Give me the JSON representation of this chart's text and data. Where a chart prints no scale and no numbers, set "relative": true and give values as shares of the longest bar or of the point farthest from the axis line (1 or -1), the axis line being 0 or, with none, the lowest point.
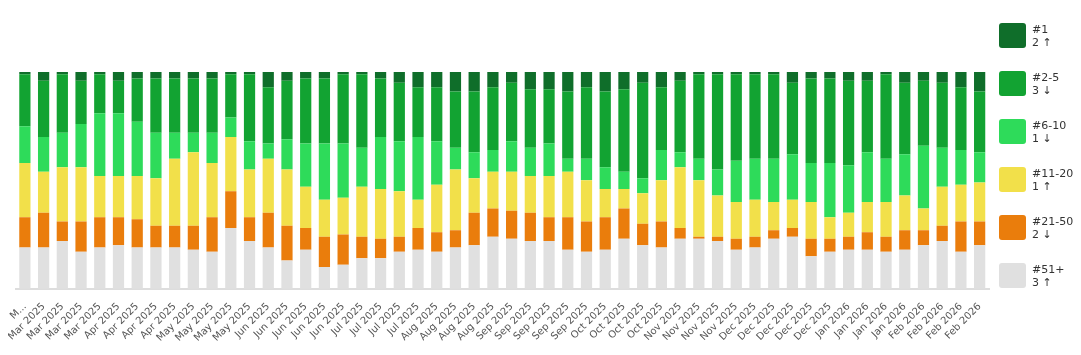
{
  "chart_data": {
    "type": "bar",
    "stacked": true,
    "relative": true,
    "legend": "right",
    "categories": [
      "M...",
      "Mar 2025",
      "Mar 2025",
      "Mar 2025",
      "Mar 2025",
      "Apr 2025",
      "Apr 2025",
      "Apr 2025",
      "Apr 2025",
      "May 2025",
      "May 2025",
      "May 2025",
      "May 2025",
      "Jun 2025",
      "Jun 2025",
      "Jun 2025",
      "Jun 2025",
      "Jun 2025",
      "Jul 2025",
      "Jul 2025",
      "Jul 2025",
      "Jul 2025",
      "Aug 2025",
      "Aug 2025",
      "Aug 2025",
      "Aug 2025",
      "Sep 2025",
      "Sep 2025",
      "Sep 2025",
      "Sep 2025",
      "Sep 2025",
      "Oct 2025",
      "Oct 2025",
      "Oct 2025",
      "Oct 2025",
      "Nov 2025",
      "Nov 2025",
      "Nov 2025",
      "Nov 2025",
      "Dec 2025",
      "Dec 2025",
      "Dec 2025",
      "Dec 2025",
      "Dec 2025",
      "Jan 2026",
      "Jan 2026",
      "Jan 2026",
      "Jan 2026",
      "Feb 2026",
      "Feb 2026",
      "Feb 2026",
      "Feb 2026"
    ],
    "series": [
      {
        "name": "#51+",
        "color": "#e0e0e0",
        "values": [
          0.19,
          0.19,
          0.22,
          0.17,
          0.19,
          0.2,
          0.19,
          0.19,
          0.19,
          0.18,
          0.17,
          0.28,
          0.22,
          0.19,
          0.13,
          0.18,
          0.1,
          0.11,
          0.14,
          0.14,
          0.17,
          0.18,
          0.17,
          0.19,
          0.2,
          0.24,
          0.23,
          0.22,
          0.22,
          0.18,
          0.17,
          0.18,
          0.23,
          0.2,
          0.19,
          0.23,
          0.23,
          0.22,
          0.18,
          0.19,
          0.23,
          0.24,
          0.15,
          0.17,
          0.18,
          0.18,
          0.17,
          0.18,
          0.2,
          0.22,
          0.17,
          0.2
        ]
      },
      {
        "name": "#21-50",
        "color": "#ea7d0c",
        "values": [
          0.14,
          0.16,
          0.09,
          0.14,
          0.14,
          0.13,
          0.13,
          0.1,
          0.1,
          0.11,
          0.16,
          0.17,
          0.11,
          0.16,
          0.16,
          0.1,
          0.14,
          0.14,
          0.1,
          0.09,
          0.07,
          0.1,
          0.09,
          0.08,
          0.15,
          0.13,
          0.13,
          0.13,
          0.11,
          0.15,
          0.14,
          0.15,
          0.14,
          0.1,
          0.12,
          0.05,
          0.01,
          0.02,
          0.05,
          0.05,
          0.04,
          0.04,
          0.08,
          0.06,
          0.06,
          0.08,
          0.07,
          0.09,
          0.07,
          0.07,
          0.14,
          0.11
        ]
      },
      {
        "name": "#11-20",
        "color": "#f2e04a",
        "values": [
          0.25,
          0.19,
          0.25,
          0.25,
          0.19,
          0.19,
          0.2,
          0.22,
          0.31,
          0.34,
          0.25,
          0.25,
          0.22,
          0.25,
          0.26,
          0.19,
          0.17,
          0.17,
          0.23,
          0.23,
          0.21,
          0.13,
          0.22,
          0.28,
          0.16,
          0.17,
          0.18,
          0.17,
          0.19,
          0.21,
          0.19,
          0.13,
          0.09,
          0.14,
          0.19,
          0.28,
          0.26,
          0.19,
          0.17,
          0.17,
          0.13,
          0.13,
          0.17,
          0.1,
          0.11,
          0.14,
          0.16,
          0.16,
          0.1,
          0.18,
          0.17,
          0.18
        ]
      },
      {
        "name": "#6-10",
        "color": "#2edb5a",
        "values": [
          0.17,
          0.16,
          0.16,
          0.2,
          0.29,
          0.29,
          0.25,
          0.21,
          0.12,
          0.09,
          0.14,
          0.09,
          0.13,
          0.07,
          0.14,
          0.2,
          0.26,
          0.25,
          0.18,
          0.24,
          0.23,
          0.29,
          0.2,
          0.1,
          0.12,
          0.1,
          0.14,
          0.13,
          0.15,
          0.06,
          0.1,
          0.1,
          0.08,
          0.07,
          0.14,
          0.07,
          0.1,
          0.12,
          0.19,
          0.19,
          0.2,
          0.21,
          0.18,
          0.25,
          0.22,
          0.23,
          0.2,
          0.19,
          0.29,
          0.18,
          0.16,
          0.14
        ]
      },
      {
        "name": "#2-5",
        "color": "#12a332",
        "values": [
          0.24,
          0.26,
          0.27,
          0.2,
          0.18,
          0.15,
          0.2,
          0.25,
          0.25,
          0.25,
          0.25,
          0.2,
          0.31,
          0.26,
          0.27,
          0.3,
          0.3,
          0.32,
          0.34,
          0.27,
          0.27,
          0.23,
          0.25,
          0.26,
          0.28,
          0.29,
          0.27,
          0.27,
          0.25,
          0.31,
          0.33,
          0.35,
          0.38,
          0.44,
          0.29,
          0.33,
          0.39,
          0.44,
          0.4,
          0.39,
          0.39,
          0.33,
          0.39,
          0.39,
          0.39,
          0.33,
          0.39,
          0.33,
          0.3,
          0.3,
          0.29,
          0.28
        ]
      },
      {
        "name": "#1",
        "color": "#0f6e2a",
        "values": [
          0.01,
          0.04,
          0.01,
          0.04,
          0.01,
          0.04,
          0.03,
          0.03,
          0.03,
          0.03,
          0.03,
          0.01,
          0.01,
          0.07,
          0.04,
          0.03,
          0.03,
          0.01,
          0.01,
          0.03,
          0.05,
          0.07,
          0.07,
          0.09,
          0.09,
          0.07,
          0.05,
          0.08,
          0.08,
          0.09,
          0.07,
          0.09,
          0.08,
          0.05,
          0.07,
          0.04,
          0.01,
          0.01,
          0.01,
          0.01,
          0.01,
          0.05,
          0.03,
          0.03,
          0.04,
          0.04,
          0.01,
          0.05,
          0.04,
          0.05,
          0.07,
          0.09
        ]
      }
    ],
    "annotations": [
      "3 ↑",
      "2 ↓",
      "1 ↑",
      "1 ↓",
      "3 ↓",
      "2 ↑"
    ]
  }
}
